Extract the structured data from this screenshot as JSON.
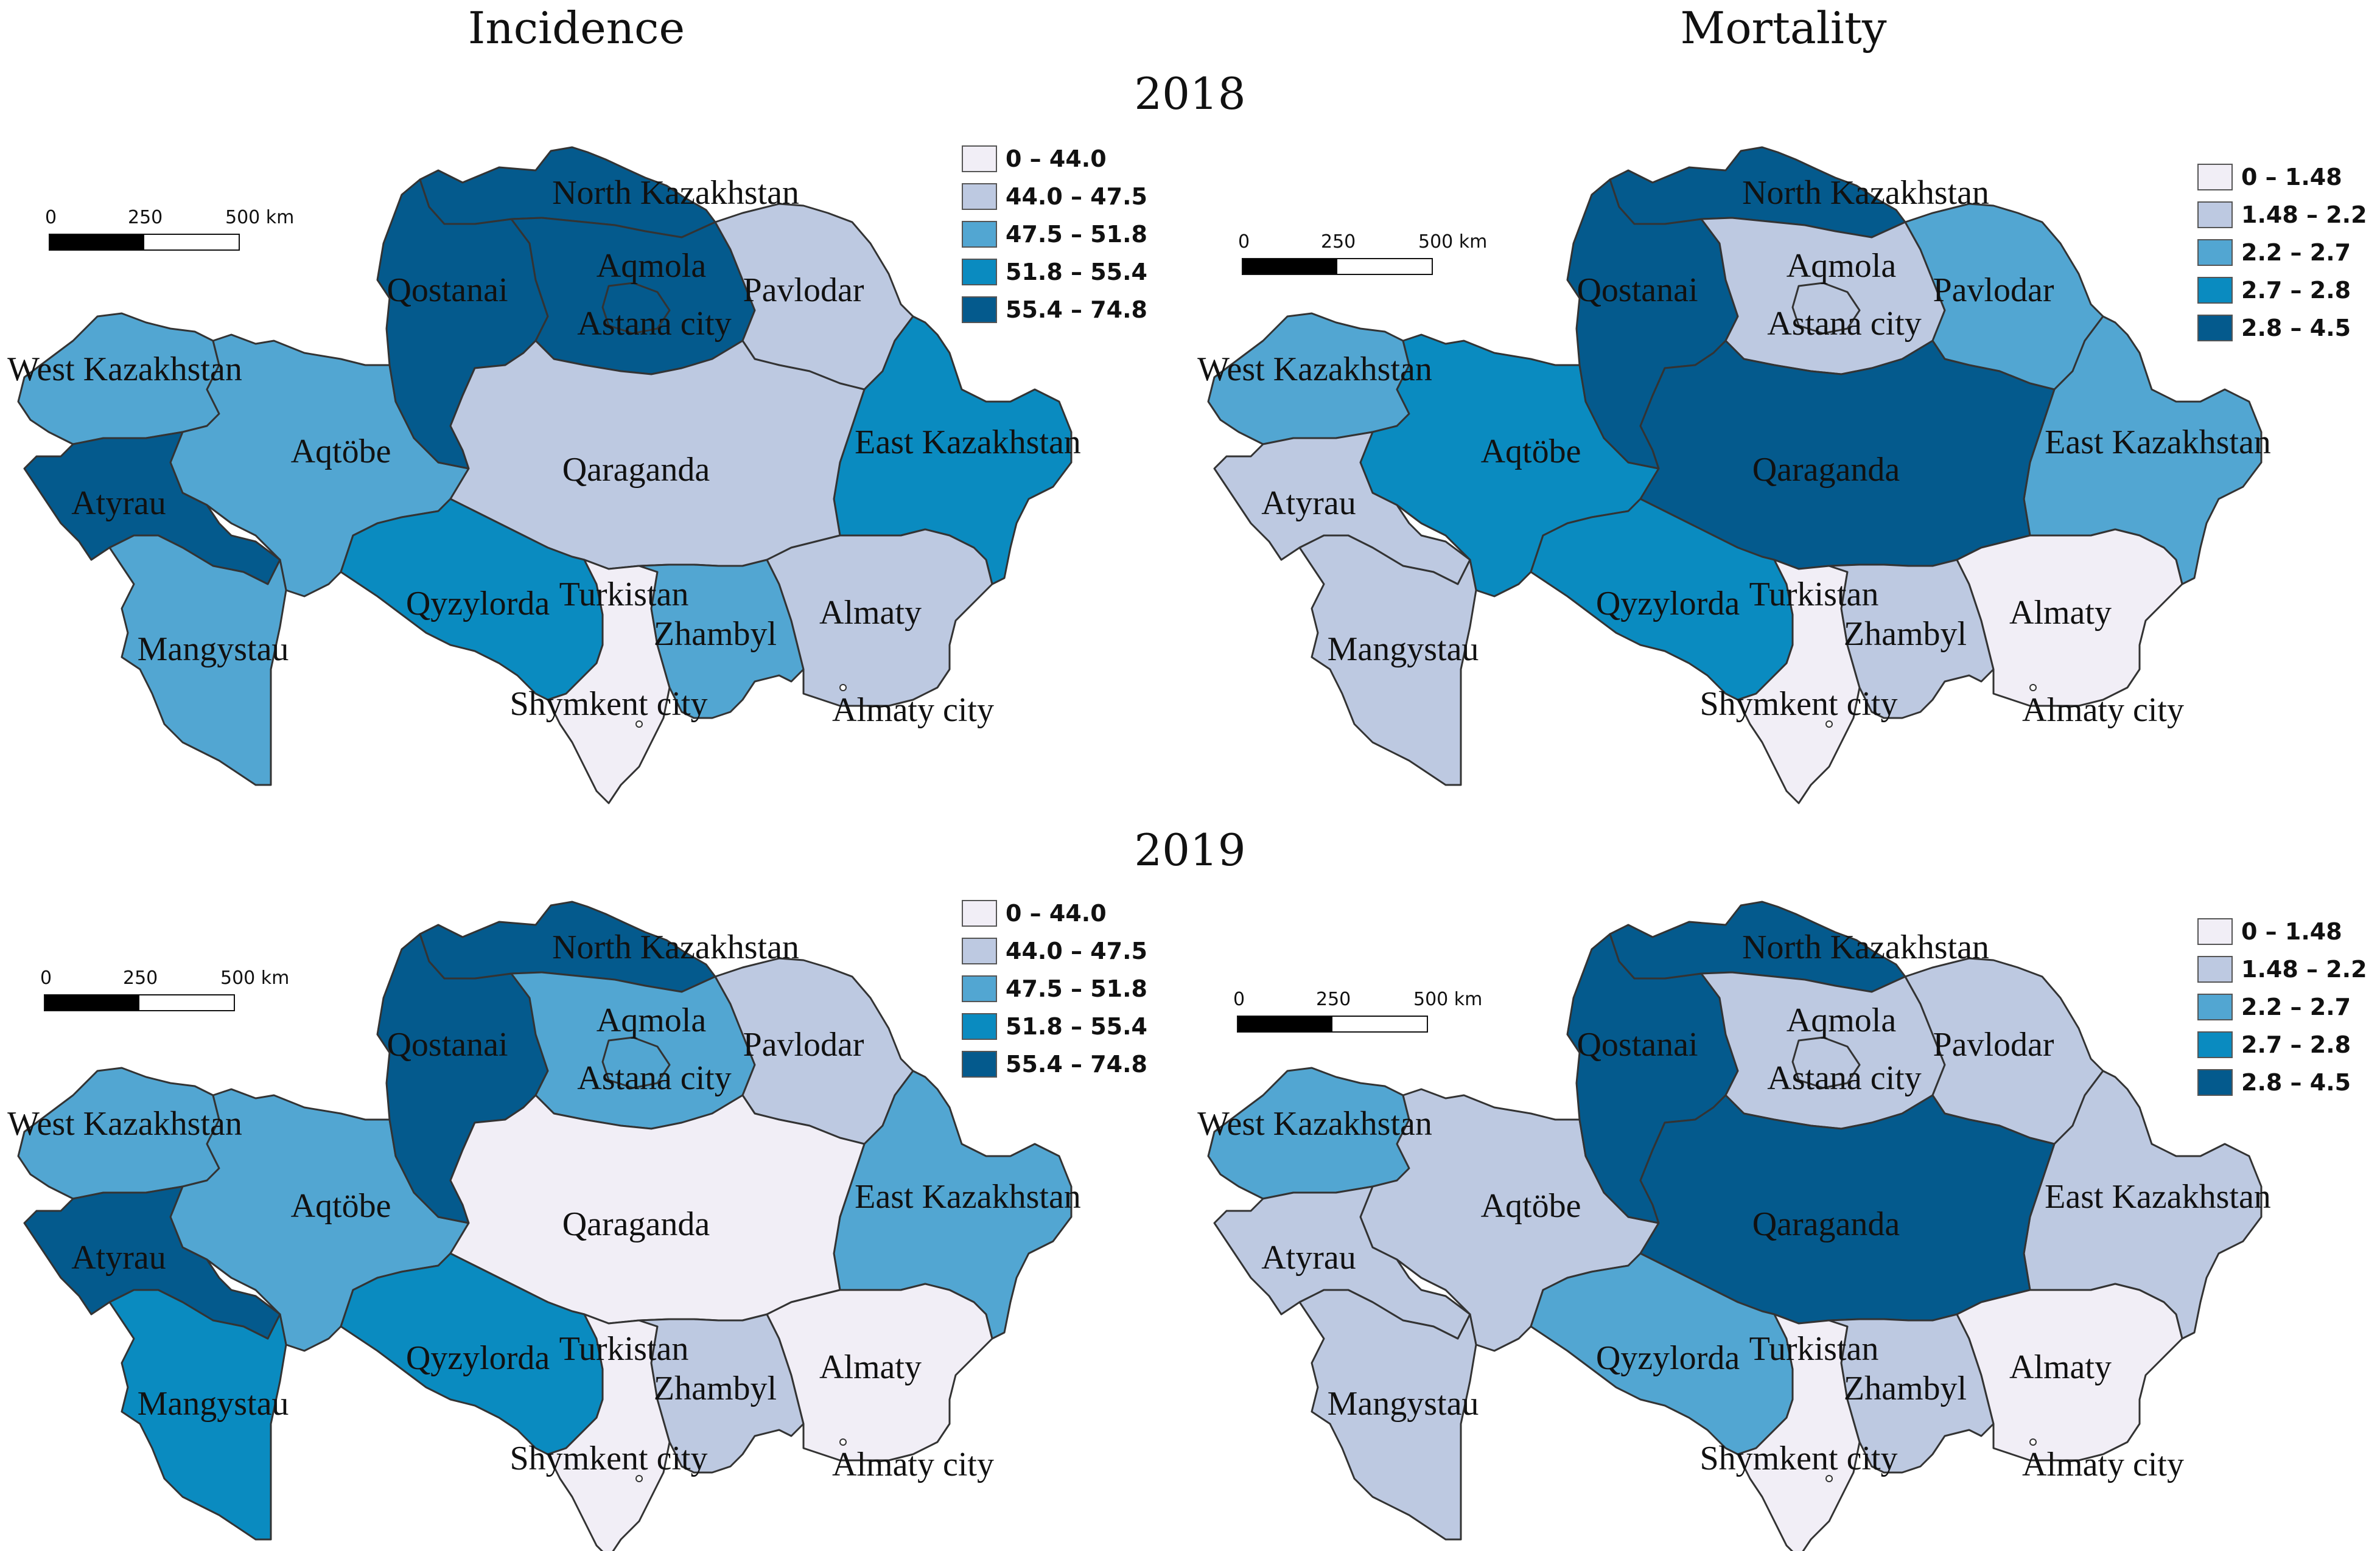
{
  "headers": {
    "incidence": "Incidence",
    "mortality": "Mortality"
  },
  "years": [
    "2018",
    "2019"
  ],
  "scale_bar": {
    "tick0": "0",
    "tick1": "250",
    "tick2": "500 km"
  },
  "legend_incidence": [
    {
      "label": "0 – 44.0",
      "color": "#f1eef6"
    },
    {
      "label": "44.0 – 47.5",
      "color": "#bdc9e1"
    },
    {
      "label": "47.5 – 51.8",
      "color": "#52a6d2"
    },
    {
      "label": "51.8 – 55.4",
      "color": "#0a8bc0"
    },
    {
      "label": "55.4 – 74.8",
      "color": "#045a8d"
    }
  ],
  "legend_mortality": [
    {
      "label": "0 – 1.48",
      "color": "#f1eef6"
    },
    {
      "label": "1.48 – 2.2",
      "color": "#bdc9e1"
    },
    {
      "label": "2.2 – 2.7",
      "color": "#52a6d2"
    },
    {
      "label": "2.7 – 2.8",
      "color": "#0a8bc0"
    },
    {
      "label": "2.8 – 4.5",
      "color": "#045a8d"
    }
  ],
  "region_names": {
    "north_kaz": "North Kazakhstan",
    "qostanai": "Qostanai",
    "aqmola": "Aqmola",
    "astana": "Astana city",
    "pavlodar": "Pavlodar",
    "west_kaz": "West Kazakhstan",
    "aqtobe": "Aqtöbe",
    "qaraganda": "Qaraganda",
    "east_kaz": "East Kazakhstan",
    "atyrau": "Atyrau",
    "mangystau": "Mangystau",
    "qyzylorda": "Qyzylorda",
    "turkistan": "Turkistan",
    "zhambyl": "Zhambyl",
    "almaty": "Almaty",
    "shymkent": "Shymkent city",
    "almaty_city": "Almaty city"
  },
  "maps": [
    {
      "name": "incidence-2018",
      "measure": "Incidence",
      "year": "2018",
      "classes": {
        "west_kaz": 2,
        "aqtobe": 2,
        "qostanai": 4,
        "north_kaz": 4,
        "aqmola": 4,
        "astana": 4,
        "pavlodar": 1,
        "east_kaz": 3,
        "qaraganda": 1,
        "atyrau": 4,
        "mangystau": 2,
        "qyzylorda": 3,
        "turkistan": 0,
        "zhambyl": 2,
        "almaty": 1
      }
    },
    {
      "name": "mortality-2018",
      "measure": "Mortality",
      "year": "2018",
      "classes": {
        "west_kaz": 2,
        "aqtobe": 3,
        "qostanai": 4,
        "north_kaz": 4,
        "aqmola": 1,
        "astana": 1,
        "pavlodar": 2,
        "east_kaz": 2,
        "qaraganda": 4,
        "atyrau": 1,
        "mangystau": 1,
        "qyzylorda": 3,
        "turkistan": 0,
        "zhambyl": 1,
        "almaty": 0
      }
    },
    {
      "name": "incidence-2019",
      "measure": "Incidence",
      "year": "2019",
      "classes": {
        "west_kaz": 2,
        "aqtobe": 2,
        "qostanai": 4,
        "north_kaz": 4,
        "aqmola": 2,
        "astana": 2,
        "pavlodar": 1,
        "east_kaz": 2,
        "qaraganda": 0,
        "atyrau": 4,
        "mangystau": 3,
        "qyzylorda": 3,
        "turkistan": 0,
        "zhambyl": 1,
        "almaty": 0
      }
    },
    {
      "name": "mortality-2019",
      "measure": "Mortality",
      "year": "2019",
      "classes": {
        "west_kaz": 2,
        "aqtobe": 1,
        "qostanai": 4,
        "north_kaz": 4,
        "aqmola": 1,
        "astana": 1,
        "pavlodar": 1,
        "east_kaz": 1,
        "qaraganda": 4,
        "atyrau": 1,
        "mangystau": 1,
        "qyzylorda": 2,
        "turkistan": 0,
        "zhambyl": 1,
        "almaty": 0
      }
    }
  ]
}
